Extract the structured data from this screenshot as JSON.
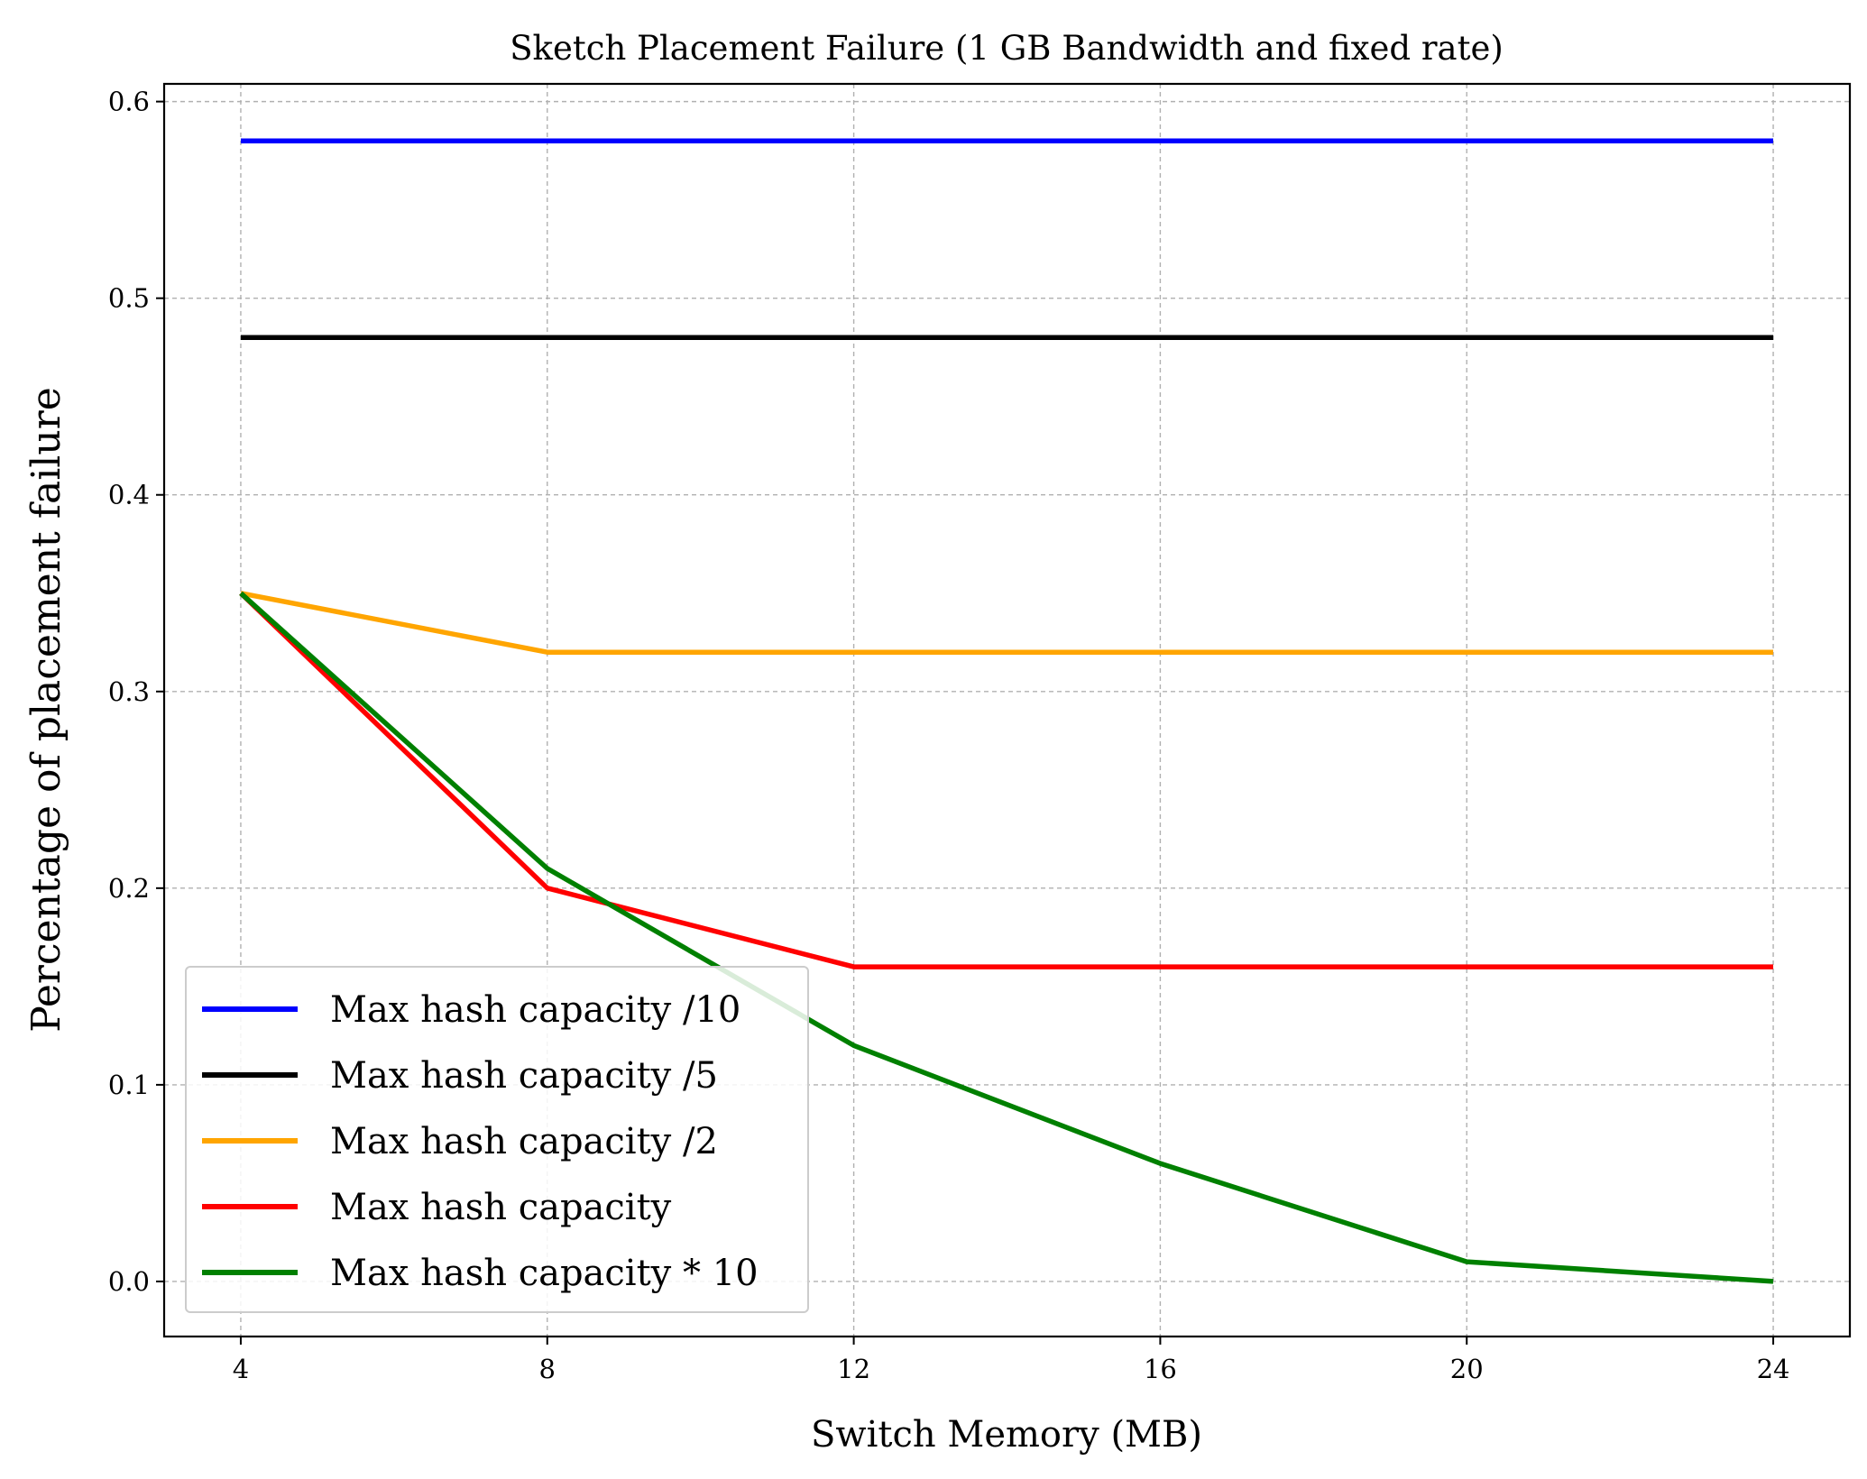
{
  "chart_data": {
    "type": "line",
    "title": "Sketch Placement Failure (1 GB Bandwidth and fixed rate)",
    "xlabel": "Switch Memory (MB)",
    "ylabel": "Percentage of placement failure",
    "x": [
      4,
      8,
      12,
      16,
      20,
      24
    ],
    "xticks": [
      "4",
      "8",
      "12",
      "16",
      "20",
      "24"
    ],
    "yticks": [
      "0.0",
      "0.1",
      "0.2",
      "0.3",
      "0.4",
      "0.5",
      "0.6"
    ],
    "xlim": [
      3,
      25
    ],
    "ylim": [
      -0.028,
      0.609
    ],
    "grid": true,
    "legend_position": "lower-left",
    "series": [
      {
        "name": "Max hash capacity /10",
        "color": "#0000ff",
        "values": [
          0.58,
          0.58,
          0.58,
          0.58,
          0.58,
          0.58
        ]
      },
      {
        "name": "Max hash capacity /5",
        "color": "#000000",
        "values": [
          0.48,
          0.48,
          0.48,
          0.48,
          0.48,
          0.48
        ]
      },
      {
        "name": "Max hash capacity /2",
        "color": "#ffa500",
        "values": [
          0.35,
          0.32,
          0.32,
          0.32,
          0.32,
          0.32
        ]
      },
      {
        "name": "Max hash capacity",
        "color": "#ff0000",
        "values": [
          0.35,
          0.2,
          0.16,
          0.16,
          0.16,
          0.16
        ]
      },
      {
        "name": "Max hash capacity * 10",
        "color": "#008000",
        "values": [
          0.35,
          0.21,
          0.12,
          0.06,
          0.01,
          0.0
        ]
      }
    ]
  }
}
